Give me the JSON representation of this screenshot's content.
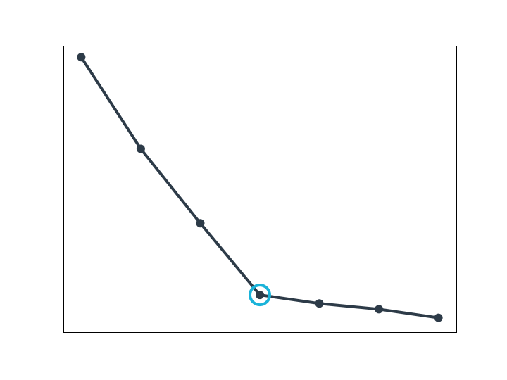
{
  "chart_data": {
    "type": "line",
    "x": [
      1,
      2,
      3,
      4,
      5,
      6,
      7
    ],
    "series": [
      {
        "values": [
          0.96,
          0.64,
          0.38,
          0.13,
          0.1,
          0.08,
          0.05
        ]
      }
    ],
    "highlight_index": 3,
    "xlim": [
      0.7,
      7.3
    ],
    "ylim": [
      0,
      1
    ],
    "grid": false,
    "axes_visible": false,
    "line_color": "#2d3b48",
    "highlight_color": "#1ab3d9"
  }
}
